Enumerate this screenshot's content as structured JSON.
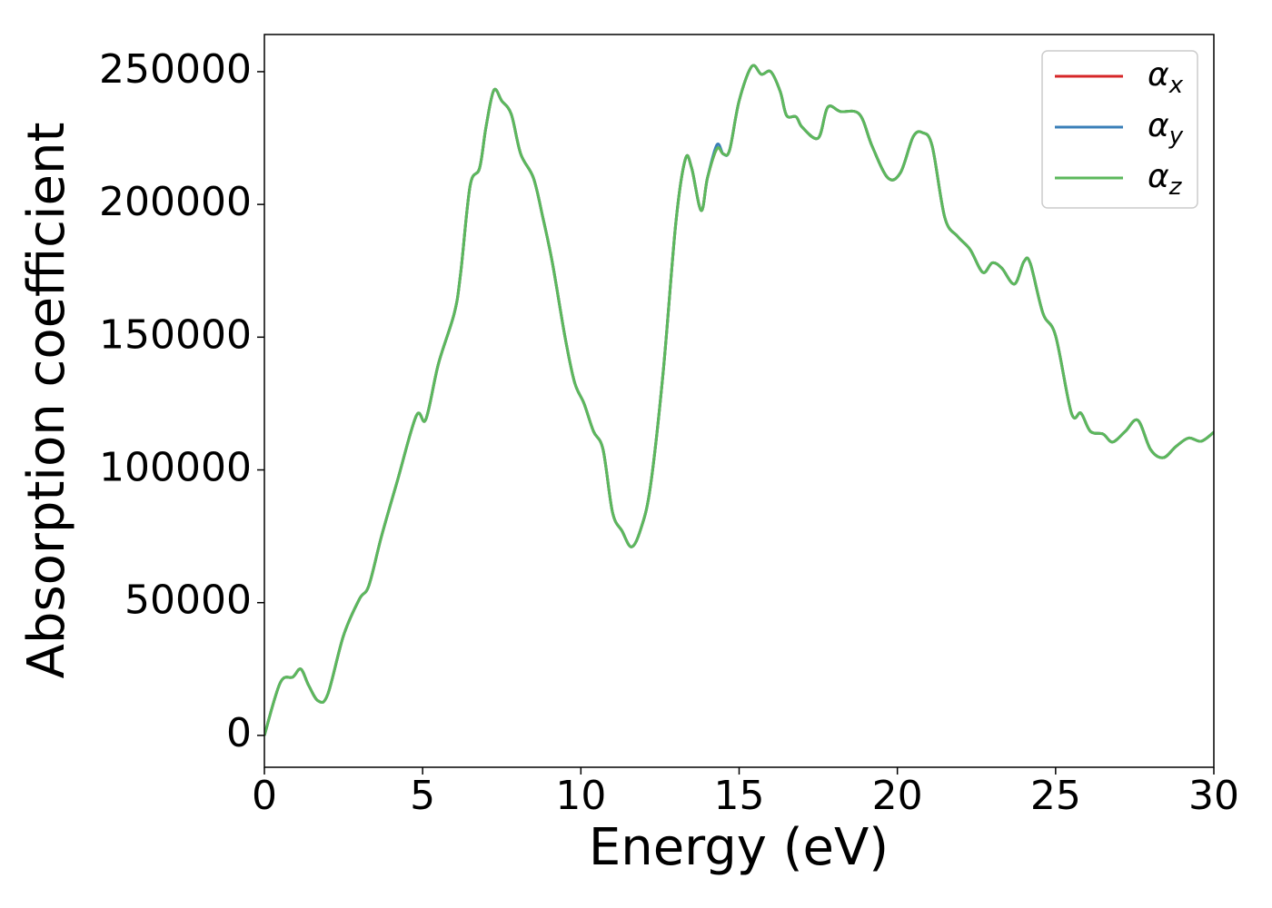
{
  "chart_data": {
    "type": "line",
    "xlabel": "Energy (eV)",
    "ylabel": "Absorption coefficient",
    "x": [
      0,
      0.5,
      0.9,
      1.15,
      1.4,
      1.7,
      2.0,
      2.5,
      3.0,
      3.3,
      3.7,
      4.2,
      4.8,
      5.1,
      5.5,
      6.0,
      6.2,
      6.5,
      6.8,
      7.0,
      7.25,
      7.5,
      7.8,
      8.1,
      8.5,
      8.8,
      9.1,
      9.5,
      9.8,
      10.1,
      10.4,
      10.7,
      11.0,
      11.3,
      11.6,
      11.9,
      12.2,
      12.6,
      13.0,
      13.3,
      13.5,
      13.8,
      14.0,
      14.3,
      14.5,
      14.7,
      15.0,
      15.4,
      15.7,
      16.0,
      16.3,
      16.5,
      16.8,
      17.0,
      17.5,
      17.8,
      18.2,
      18.8,
      19.2,
      19.7,
      20.1,
      20.5,
      20.8,
      21.1,
      21.5,
      21.9,
      22.3,
      22.7,
      23.0,
      23.3,
      23.7,
      24.0,
      24.2,
      24.6,
      25.0,
      25.5,
      25.8,
      26.1,
      26.5,
      26.8,
      27.2,
      27.6,
      28.0,
      28.4,
      28.8,
      29.2,
      29.6,
      30.0
    ],
    "series": [
      {
        "name": "αx",
        "color": "#d62728",
        "values": [
          0,
          19800,
          22000,
          25000,
          18800,
          13000,
          15400,
          37600,
          51300,
          56400,
          75000,
          95800,
          120400,
          119000,
          140000,
          159000,
          174000,
          207000,
          213700,
          229000,
          243000,
          239000,
          234000,
          219000,
          210000,
          195000,
          178000,
          150000,
          133000,
          125000,
          114500,
          107700,
          84000,
          77000,
          71000,
          78000,
          94000,
          136800,
          193000,
          217000,
          213700,
          197700,
          210000,
          221000,
          219000,
          220500,
          239000,
          252000,
          249000,
          250000,
          242500,
          233500,
          233000,
          229000,
          225000,
          236600,
          235000,
          234000,
          222000,
          210000,
          212000,
          225500,
          227000,
          222000,
          195000,
          188000,
          183000,
          174400,
          178000,
          176000,
          170000,
          178500,
          177800,
          159000,
          150500,
          121400,
          121400,
          114500,
          113500,
          110500,
          114500,
          118700,
          107700,
          104600,
          108800,
          112000,
          110800,
          114200
        ]
      },
      {
        "name": "αy",
        "color": "#3a7fb8",
        "values": [
          0,
          19800,
          22000,
          25000,
          18800,
          13000,
          15400,
          37600,
          51300,
          56400,
          75000,
          95800,
          120400,
          119000,
          140000,
          159000,
          174000,
          207000,
          213700,
          229000,
          243000,
          239000,
          234000,
          219000,
          210000,
          195000,
          178000,
          150000,
          133000,
          125000,
          114500,
          107700,
          84000,
          77000,
          71000,
          78000,
          94000,
          136800,
          193000,
          217000,
          213700,
          197700,
          210000,
          222500,
          219000,
          220500,
          239000,
          252000,
          249000,
          250000,
          242500,
          233500,
          233000,
          229000,
          225000,
          236600,
          235000,
          234000,
          222000,
          210000,
          212000,
          225500,
          227000,
          222000,
          195000,
          188000,
          183000,
          174400,
          178000,
          176000,
          170000,
          178500,
          177800,
          159000,
          150500,
          121400,
          121400,
          114500,
          113500,
          110500,
          114500,
          118700,
          107700,
          104600,
          108800,
          112000,
          110800,
          114200
        ]
      },
      {
        "name": "αz",
        "color": "#5cb85c",
        "values": [
          0,
          19800,
          22000,
          25000,
          18800,
          13000,
          15400,
          37600,
          51300,
          56400,
          75000,
          95800,
          120400,
          119000,
          140000,
          159000,
          174000,
          207000,
          213700,
          229000,
          243000,
          239000,
          234000,
          219000,
          210000,
          195000,
          178000,
          150000,
          133000,
          125000,
          114500,
          107700,
          84000,
          77000,
          71000,
          78000,
          94000,
          136800,
          193000,
          217000,
          213700,
          197700,
          210000,
          221000,
          219000,
          220500,
          239000,
          252000,
          249000,
          250000,
          242500,
          233500,
          233000,
          229000,
          225000,
          236600,
          235000,
          234000,
          222000,
          210000,
          212000,
          225500,
          227000,
          222000,
          195000,
          188000,
          183000,
          174400,
          178000,
          176000,
          170000,
          178500,
          177800,
          159000,
          150500,
          121400,
          121400,
          114500,
          113500,
          110500,
          114500,
          118700,
          107700,
          104600,
          108800,
          112000,
          110800,
          114200
        ]
      }
    ],
    "xlim": [
      0,
      30
    ],
    "xticks": [
      0,
      5,
      10,
      15,
      20,
      25,
      30
    ],
    "ylim": [
      -12000,
      264000
    ],
    "yticks": [
      0,
      50000,
      100000,
      150000,
      200000,
      250000
    ],
    "grid": false,
    "legend": "upper right"
  }
}
